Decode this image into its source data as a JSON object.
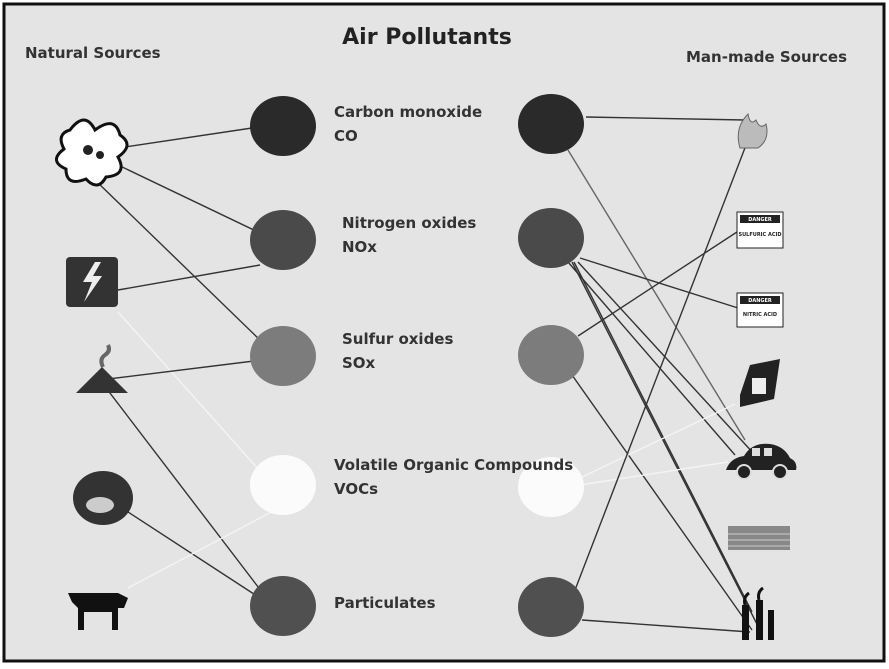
{
  "title": "Air Pollutants",
  "natural_sources_label": "Natural Sources",
  "manmade_sources_label": "Man-made Sources",
  "pollutants": [
    {
      "name": "Carbon monoxide",
      "formula": "CO"
    },
    {
      "name": "Nitrogen oxides",
      "formula": "NOx"
    },
    {
      "name": "Sulfur oxides",
      "formula": "SOx"
    },
    {
      "name": "Volatile Organic Compounds",
      "formula": "VOCs"
    },
    {
      "name": "Particulates"
    }
  ],
  "signs": [
    {
      "header": "DANGER",
      "text": "SULFURIC ACID"
    },
    {
      "header": "DANGER",
      "text": "NITRIC ACID"
    }
  ]
}
